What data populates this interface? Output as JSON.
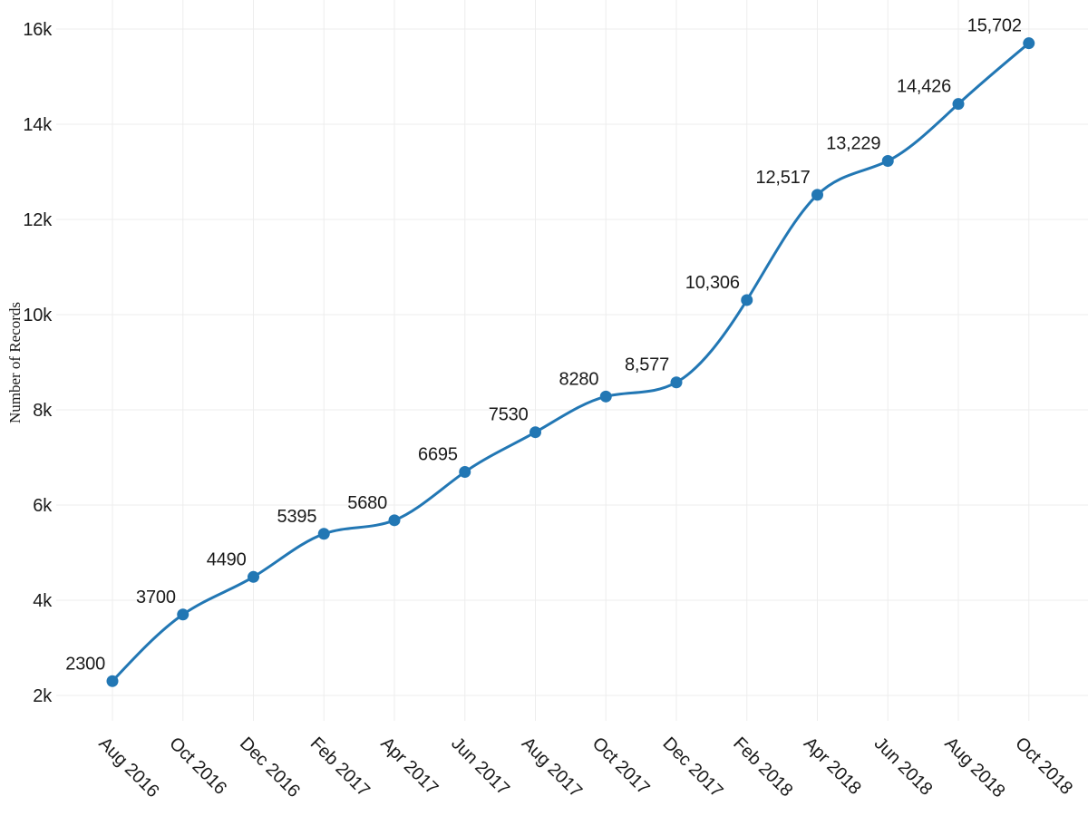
{
  "chart_data": {
    "type": "line",
    "title": "",
    "xlabel": "",
    "ylabel": "Number of Records",
    "categories": [
      "Aug 2016",
      "Oct 2016",
      "Dec 2016",
      "Feb 2017",
      "Apr 2017",
      "Jun 2017",
      "Aug 2017",
      "Oct 2017",
      "Dec 2017",
      "Feb 2018",
      "Apr 2018",
      "Jun 2018",
      "Aug 2018",
      "Oct 2018"
    ],
    "values": [
      2300,
      3700,
      4490,
      5395,
      5680,
      6695,
      7530,
      8280,
      8577,
      10306,
      12517,
      13229,
      14426,
      15702
    ],
    "point_labels": [
      "2300",
      "3700",
      "4490",
      "5395",
      "5680",
      "6695",
      "7530",
      "8280",
      "8,577",
      "10,306",
      "12,517",
      "13,229",
      "14,426",
      "15,702"
    ],
    "y_tick_values": [
      2000,
      4000,
      6000,
      8000,
      10000,
      12000,
      14000,
      16000
    ],
    "y_tick_labels": [
      "2k",
      "4k",
      "6k",
      "8k",
      "10k",
      "12k",
      "14k",
      "16k"
    ],
    "ylim": [
      1467,
      16610
    ],
    "grid": true,
    "legend": "none",
    "interpolation": "natural",
    "marker": "circle",
    "x_label_angle": 45,
    "colors": {
      "series": "#2277b4",
      "grid": "#ededed",
      "text": "#1a1a1a"
    }
  }
}
